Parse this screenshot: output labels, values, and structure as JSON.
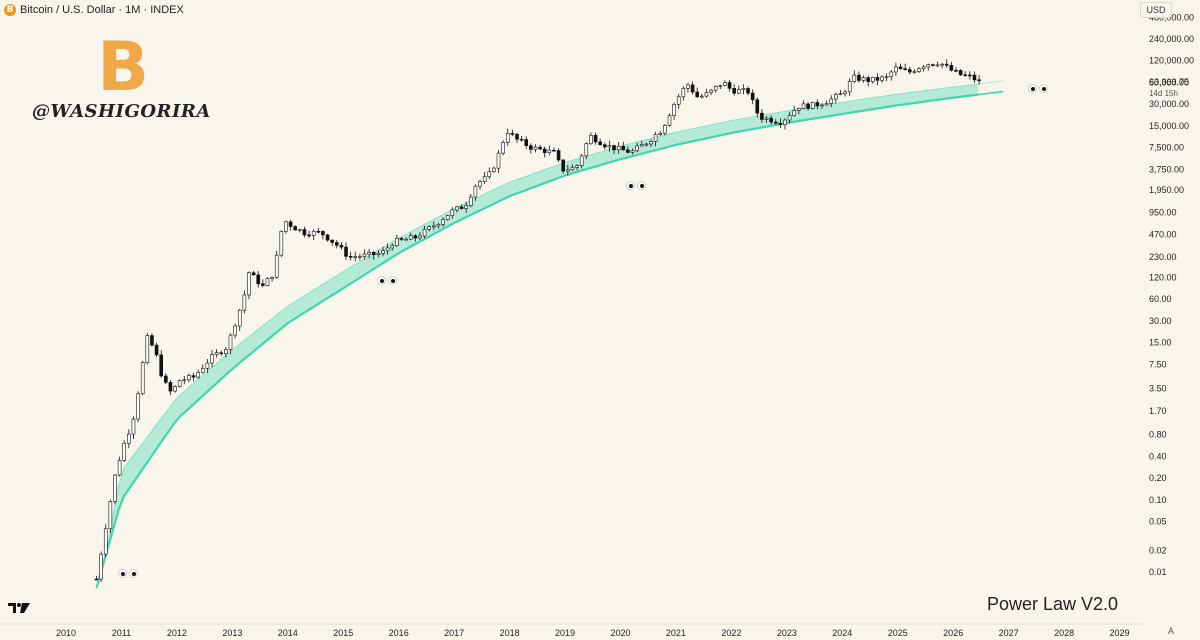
{
  "header": {
    "title": "Bitcoin / U.S. Dollar · 1M · INDEX",
    "coin_glyph": "B",
    "currency": "USD"
  },
  "watermark": {
    "logo_glyph": "B",
    "handle": "@WASHIGORIRA"
  },
  "footer": {
    "title": "Power Law V2.0",
    "axis_mode": "A"
  },
  "colors": {
    "background": "#f8f5ec",
    "band_fill": "#9fe5d0",
    "band_line": "#3fd6ae",
    "candle": "#111111",
    "logo": "#f0a848"
  },
  "icons": {
    "eyes": "eyes-emoji",
    "tradingview": "tradingview-logo-icon"
  },
  "chart_data": {
    "type": "candlestick",
    "title": "Bitcoin / U.S. Dollar · 1M · INDEX",
    "yscale": "log",
    "y_tick_labels": [
      "480,000.00",
      "240,000.00",
      "120,000.00",
      "60,000.00",
      "30,000.00",
      "15,000.00",
      "7,500.00",
      "3,750.00",
      "1,950.00",
      "950.00",
      "470.00",
      "230.00",
      "120.00",
      "60.00",
      "30.00",
      "15.00",
      "7.50",
      "3.50",
      "1.70",
      "0.80",
      "0.40",
      "0.20",
      "0.10",
      "0.05",
      "0.02",
      "0.01"
    ],
    "x_tick_labels": [
      "2010",
      "2011",
      "2012",
      "2013",
      "2014",
      "2015",
      "2016",
      "2017",
      "2018",
      "2019",
      "2020",
      "2021",
      "2022",
      "2023",
      "2024",
      "2025",
      "2026",
      "2027",
      "2028",
      "2029"
    ],
    "last_price": "63,363.75",
    "countdown": "14d 15h",
    "price_path": [
      [
        2010.55,
        0.008
      ],
      [
        2010.75,
        0.06
      ],
      [
        2010.9,
        0.25
      ],
      [
        2011.05,
        0.6
      ],
      [
        2011.2,
        1.2
      ],
      [
        2011.35,
        5.0
      ],
      [
        2011.45,
        18
      ],
      [
        2011.6,
        12
      ],
      [
        2011.75,
        4.5
      ],
      [
        2011.9,
        3.0
      ],
      [
        2012.05,
        4.5
      ],
      [
        2012.3,
        5.0
      ],
      [
        2012.6,
        9.0
      ],
      [
        2012.9,
        13
      ],
      [
        2013.2,
        60
      ],
      [
        2013.3,
        140
      ],
      [
        2013.55,
        90
      ],
      [
        2013.75,
        140
      ],
      [
        2013.92,
        750
      ],
      [
        2014.1,
        600
      ],
      [
        2014.3,
        500
      ],
      [
        2014.6,
        500
      ],
      [
        2014.9,
        330
      ],
      [
        2015.1,
        230
      ],
      [
        2015.4,
        240
      ],
      [
        2015.7,
        260
      ],
      [
        2015.9,
        370
      ],
      [
        2016.3,
        430
      ],
      [
        2016.6,
        600
      ],
      [
        2016.95,
        970
      ],
      [
        2017.2,
        1200
      ],
      [
        2017.4,
        2400
      ],
      [
        2017.6,
        2900
      ],
      [
        2017.75,
        4700
      ],
      [
        2017.95,
        13000
      ],
      [
        2018.1,
        10000
      ],
      [
        2018.4,
        7500
      ],
      [
        2018.8,
        6400
      ],
      [
        2018.95,
        3700
      ],
      [
        2019.2,
        4000
      ],
      [
        2019.45,
        11000
      ],
      [
        2019.75,
        8000
      ],
      [
        2019.95,
        7200
      ],
      [
        2020.2,
        6500
      ],
      [
        2020.5,
        9200
      ],
      [
        2020.75,
        13500
      ],
      [
        2020.95,
        29000
      ],
      [
        2021.2,
        58000
      ],
      [
        2021.4,
        37000
      ],
      [
        2021.6,
        43000
      ],
      [
        2021.85,
        61000
      ],
      [
        2022.0,
        47000
      ],
      [
        2022.3,
        45000
      ],
      [
        2022.5,
        20000
      ],
      [
        2022.9,
        17000
      ],
      [
        2023.2,
        28000
      ],
      [
        2023.5,
        29000
      ],
      [
        2023.8,
        35000
      ],
      [
        2024.0,
        42000
      ],
      [
        2024.2,
        70000
      ],
      [
        2024.5,
        64000
      ],
      [
        2024.8,
        70000
      ],
      [
        2024.95,
        95000
      ],
      [
        2025.2,
        83000
      ],
      [
        2025.5,
        108000
      ],
      [
        2025.75,
        114000
      ],
      [
        2025.95,
        90000
      ],
      [
        2026.1,
        78000
      ],
      [
        2026.3,
        72000
      ],
      [
        2026.45,
        63363
      ]
    ],
    "power_law_band": {
      "support": [
        [
          2010.55,
          0.006
        ],
        [
          2011.0,
          0.1
        ],
        [
          2012.0,
          1.3
        ],
        [
          2013.0,
          6.5
        ],
        [
          2014.0,
          28
        ],
        [
          2015.0,
          85
        ],
        [
          2016.0,
          260
        ],
        [
          2017.0,
          680
        ],
        [
          2018.0,
          1600
        ],
        [
          2019.0,
          3100
        ],
        [
          2020.0,
          5200
        ],
        [
          2021.0,
          8200
        ],
        [
          2022.0,
          12000
        ],
        [
          2023.0,
          16500
        ],
        [
          2024.0,
          22000
        ],
        [
          2025.0,
          29000
        ],
        [
          2026.0,
          37000
        ],
        [
          2026.9,
          45000
        ]
      ],
      "upper": [
        [
          2010.6,
          0.006
        ],
        [
          2011.0,
          0.25
        ],
        [
          2012.0,
          2.6
        ],
        [
          2013.0,
          12
        ],
        [
          2014.0,
          48
        ],
        [
          2015.0,
          145
        ],
        [
          2016.0,
          420
        ],
        [
          2017.0,
          1080
        ],
        [
          2018.0,
          2500
        ],
        [
          2019.0,
          4700
        ],
        [
          2020.0,
          7900
        ],
        [
          2021.0,
          12300
        ],
        [
          2022.0,
          17800
        ],
        [
          2023.0,
          24300
        ],
        [
          2024.0,
          32000
        ],
        [
          2025.0,
          41500
        ],
        [
          2026.0,
          52000
        ],
        [
          2026.9,
          63000
        ]
      ]
    }
  }
}
